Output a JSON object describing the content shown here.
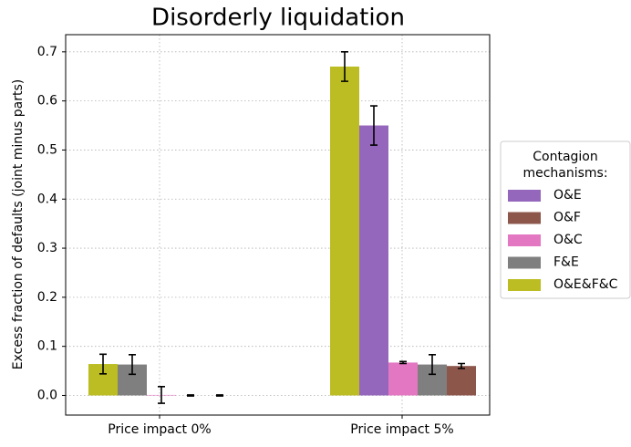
{
  "chart_data": {
    "type": "bar",
    "title": "Disorderly liquidation",
    "y_label": "Excess fraction of defaults (joint minus parts)",
    "categories": [
      "Price impact 0%",
      "Price impact 5%"
    ],
    "legend_title": "Contagion mechanisms:",
    "legend_position": "right outside",
    "series": [
      {
        "name": "O&E",
        "color": "#9467bd",
        "values": [
          0,
          0.55
        ],
        "errors": [
          0.001,
          0.04
        ]
      },
      {
        "name": "O&F",
        "color": "#8c564b",
        "values": [
          0,
          0.06
        ],
        "errors": [
          0.001,
          0.005
        ]
      },
      {
        "name": "O&C",
        "color": "#e377c2",
        "values": [
          0.001,
          0.067
        ],
        "errors": [
          0.017,
          0.002
        ]
      },
      {
        "name": "F&E",
        "color": "#7f7f7f",
        "values": [
          0.063,
          0.063
        ],
        "errors": [
          0.02,
          0.02
        ]
      },
      {
        "name": "O&E&F&C",
        "color": "#bcbd22",
        "values": [
          0.064,
          0.67
        ],
        "errors": [
          0.02,
          0.03
        ]
      }
    ],
    "ylim": [
      -0.04,
      0.735
    ],
    "yticks": [
      {
        "value": 0,
        "label": "0.0"
      },
      0.1,
      0.2,
      0.3,
      0.4,
      0.5,
      0.6,
      0.7
    ],
    "grid": true
  }
}
